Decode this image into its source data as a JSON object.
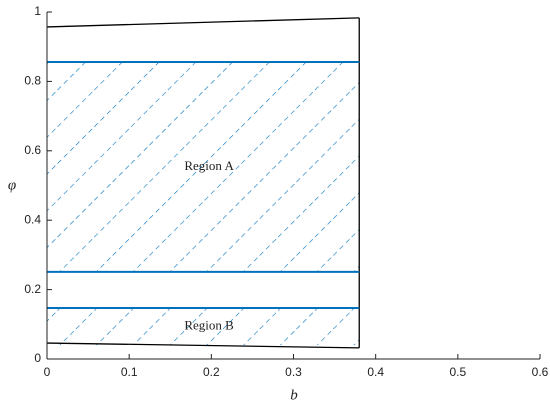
{
  "chart_data": {
    "type": "line",
    "x_label": "b",
    "y_label": "φ",
    "xlim": [
      0,
      0.6
    ],
    "xticks": [
      0,
      0.1,
      0.2,
      0.3,
      0.4,
      0.5,
      0.6
    ],
    "ylim": [
      0,
      1
    ],
    "yticks": [
      0,
      0.2,
      0.4,
      0.6,
      0.8,
      1
    ],
    "series": [
      {
        "color": "#000000",
        "x": [
          0,
          0.38
        ],
        "values": [
          0.957,
          0.983
        ]
      },
      {
        "color": "#000000",
        "x": [
          0,
          0.38
        ],
        "values": [
          0.046,
          0.032
        ]
      },
      {
        "color": "#000000",
        "x": [
          0.38,
          0.38
        ],
        "values": [
          0.032,
          0.983
        ]
      },
      {
        "color": "#0072bd",
        "x": [
          0,
          0.38
        ],
        "values": [
          0.856,
          0.856
        ]
      },
      {
        "color": "#0072bd",
        "x": [
          0,
          0.38
        ],
        "values": [
          0.251,
          0.251
        ]
      },
      {
        "color": "#0072bd",
        "x": [
          0,
          0.38
        ],
        "values": [
          0.147,
          0.147
        ]
      }
    ],
    "regions": [
      {
        "label": "Region A",
        "color": "#0072bd",
        "xrange": [
          0,
          0.38
        ],
        "yrange": [
          0.251,
          0.856
        ]
      },
      {
        "label": "Region B",
        "color": "#0072bd",
        "xrange": [
          0,
          0.38
        ],
        "yrange": [
          0.04,
          0.147
        ]
      }
    ]
  }
}
